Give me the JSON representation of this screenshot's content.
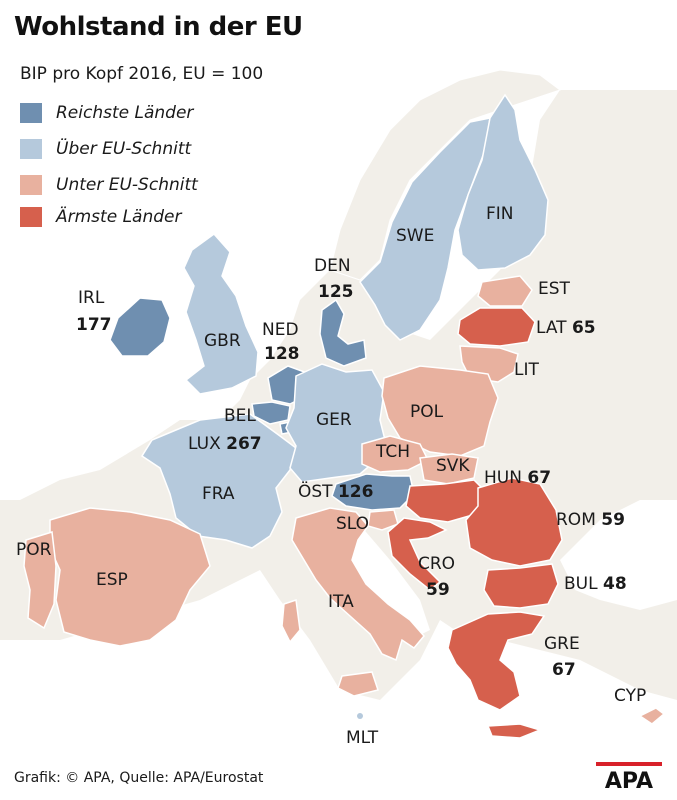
{
  "title": "Wohlstand in der EU",
  "subtitle": "BIP pro Kopf 2016, EU = 100",
  "legend": [
    {
      "label": "Reichste Länder",
      "color": "#6f8fb0"
    },
    {
      "label": "Über EU-Schnitt",
      "color": "#b5c9dc"
    },
    {
      "label": "Unter EU-Schnitt",
      "color": "#e8b19f"
    },
    {
      "label": "Ärmste Länder",
      "color": "#d6604d"
    }
  ],
  "colors": {
    "sea": "#ffffff",
    "land": "#f2efe9",
    "richest": "#6f8fb0",
    "above": "#b5c9dc",
    "below": "#e8b19f",
    "poorest": "#d6604d",
    "border": "#ffffff"
  },
  "countries": {
    "irl": {
      "code": "IRL",
      "value": "177"
    },
    "gbr": {
      "code": "GBR"
    },
    "ned": {
      "code": "NED",
      "value": "128"
    },
    "bel": {
      "code": "BEL"
    },
    "lux": {
      "code": "LUX",
      "value": "267"
    },
    "fra": {
      "code": "FRA"
    },
    "ger": {
      "code": "GER"
    },
    "den": {
      "code": "DEN",
      "value": "125"
    },
    "swe": {
      "code": "SWE"
    },
    "fin": {
      "code": "FIN"
    },
    "est": {
      "code": "EST"
    },
    "lat": {
      "code": "LAT",
      "value": "65"
    },
    "lit": {
      "code": "LIT"
    },
    "pol": {
      "code": "POL"
    },
    "tch": {
      "code": "TCH"
    },
    "svk": {
      "code": "SVK"
    },
    "hun": {
      "code": "HUN",
      "value": "67"
    },
    "ost": {
      "code": "ÖST",
      "value": "126"
    },
    "slo": {
      "code": "SLO"
    },
    "cro": {
      "code": "CRO",
      "value": "59"
    },
    "rom": {
      "code": "ROM",
      "value": "59"
    },
    "bul": {
      "code": "BUL",
      "value": "48"
    },
    "gre": {
      "code": "GRE",
      "value": "67"
    },
    "cyp": {
      "code": "CYP"
    },
    "ita": {
      "code": "ITA"
    },
    "mlt": {
      "code": "MLT"
    },
    "esp": {
      "code": "ESP"
    },
    "por": {
      "code": "POR"
    }
  },
  "footer": "Grafik: © APA, Quelle: APA/Eurostat",
  "logo": "APA"
}
